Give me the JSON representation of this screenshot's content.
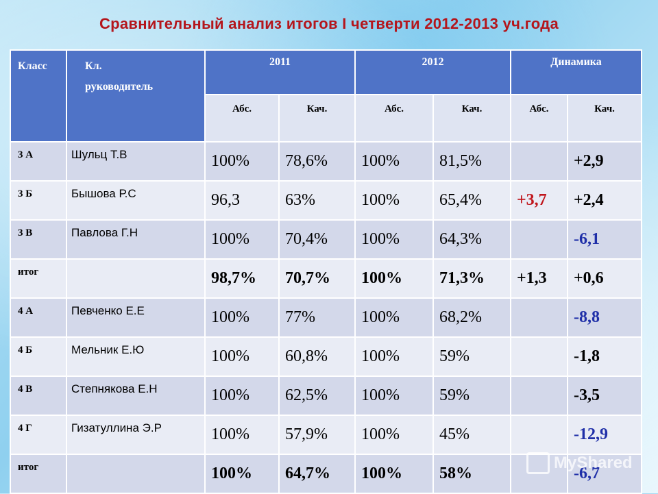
{
  "title": "Сравнительный анализ итогов I четверти 2012-2013 уч.года",
  "header": {
    "klass": "Класс",
    "ruk_line1": "Кл.",
    "ruk_line2": "руководитель",
    "y2011": "2011",
    "y2012": "2012",
    "dyn": "Динамика",
    "abs": "Абс.",
    "kach": "Кач."
  },
  "rows": [
    {
      "cls": "3 А",
      "name": "Шульц Т.В",
      "a11": "100%",
      "q11": "78,6%",
      "a12": "100%",
      "q12": "81,5%",
      "da": "",
      "dq": "+2,9"
    },
    {
      "cls": "3 Б",
      "name": "Бышова Р.С",
      "a11": "96,3",
      "q11": "63%",
      "a12": "100%",
      "q12": "65,4%",
      "da": "+3,7",
      "dq": "+2,4"
    },
    {
      "cls": "3 В",
      "name": "Павлова Г.Н",
      "a11": "100%",
      "q11": "70,4%",
      "a12": "100%",
      "q12": "64,3%",
      "da": "",
      "dq": "-6,1"
    },
    {
      "cls": "итог",
      "name": "",
      "a11": "98,7%",
      "q11": "70,7%",
      "a12": "100%",
      "q12": "71,3%",
      "da": "+1,3",
      "dq": "+0,6"
    },
    {
      "cls": "4 А",
      "name": "Певченко Е.Е",
      "a11": "100%",
      "q11": "77%",
      "a12": "100%",
      "q12": "68,2%",
      "da": "",
      "dq": "-8,8"
    },
    {
      "cls": "4 Б",
      "name": "Мельник Е.Ю",
      "a11": "100%",
      "q11": "60,8%",
      "a12": "100%",
      "q12": "59%",
      "da": "",
      "dq": "-1,8"
    },
    {
      "cls": "4 В",
      "name": "Степнякова Е.Н",
      "a11": "100%",
      "q11": "62,5%",
      "a12": "100%",
      "q12": "59%",
      "da": "",
      "dq": "-3,5"
    },
    {
      "cls": "4 Г",
      "name": "Гизатуллина Э.Р",
      "a11": "100%",
      "q11": "57,9%",
      "a12": "100%",
      "q12": "45%",
      "da": "",
      "dq": "-12,9"
    },
    {
      "cls": "итог",
      "name": "",
      "a11": "100%",
      "q11": "64,7%",
      "a12": "100%",
      "q12": "58%",
      "da": "",
      "dq": "-6,7"
    }
  ],
  "watermark": "MyShared",
  "colors": {
    "title": "#b4161c",
    "header_bg": "#4f73c7",
    "positive": "#c0161c",
    "negative": "#1f2fa8"
  }
}
